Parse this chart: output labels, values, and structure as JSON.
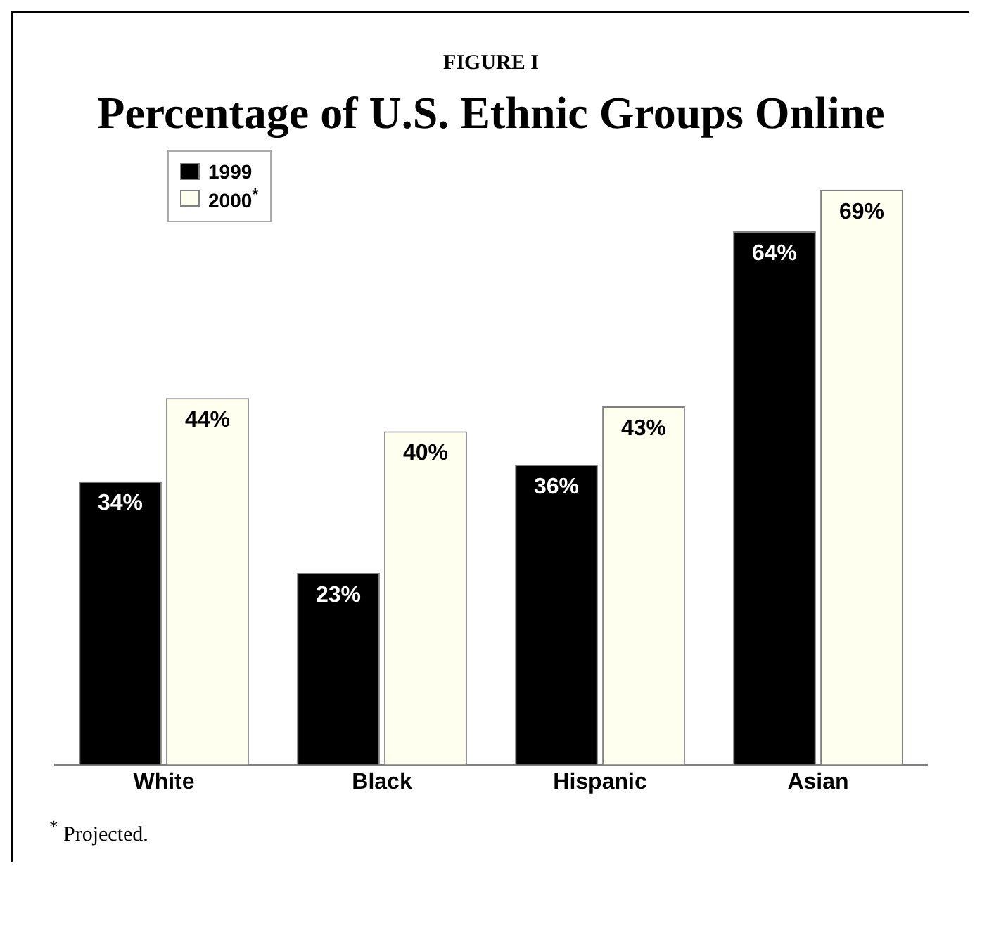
{
  "chart_data": {
    "type": "bar",
    "title": "FIGURE I",
    "subtitle": "Percentage of U.S. Ethnic Groups Online",
    "categories": [
      "White",
      "Black",
      "Hispanic",
      "Asian"
    ],
    "series": [
      {
        "name": "1999",
        "color": "#000000",
        "values": [
          34,
          23,
          36,
          64
        ],
        "value_labels": [
          "34%",
          "23%",
          "36%",
          "64%"
        ]
      },
      {
        "name": "2000$^{*}$",
        "color": "#fffff0",
        "values": [
          44,
          40,
          43,
          69
        ],
        "value_labels": [
          "44%",
          "40%",
          "43%",
          "69%"
        ]
      }
    ],
    "legend": "top left",
    "grid": false,
    "annotations": [
      "$^{*}$ Projected."
    ]
  }
}
